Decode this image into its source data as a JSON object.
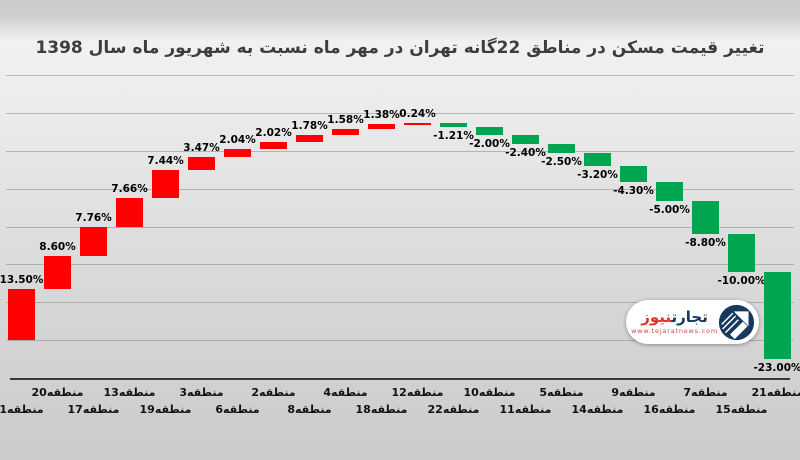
{
  "title": "تغییر قیمت مسکن در مناطق 22گانه تهران در مهر ماه نسبت به شهریور ماه سال 1398",
  "watermark": {
    "brand_word_right": "تجارت",
    "brand_word_left": "نیوز",
    "url": "www.tejaratnews.com",
    "logo": "arrow-circle-icon",
    "navy_color": "#16395d",
    "red_color": "#e23328"
  },
  "chart_data": {
    "type": "bar",
    "subtype": "waterfall",
    "title": "تغییر قیمت مسکن در مناطق 22گانه تهران در مهر ماه نسبت به شهریور ماه سال 1398",
    "categories": [
      "منطقه1",
      "منطقه20",
      "منطقه17",
      "منطقه13",
      "منطقه19",
      "منطقه3",
      "منطقه6",
      "منطقه2",
      "منطقه8",
      "منطقه4",
      "منطقه18",
      "منطقه12",
      "منطقه22",
      "منطقه10",
      "منطقه11",
      "منطقه5",
      "منطقه14",
      "منطقه9",
      "منطقه16",
      "منطقه7",
      "منطقه15",
      "منطقه21"
    ],
    "values": [
      13.5,
      8.6,
      7.76,
      7.66,
      7.44,
      3.47,
      2.04,
      2.02,
      1.78,
      1.58,
      1.38,
      0.24,
      -1.21,
      -2.0,
      -2.4,
      -2.5,
      -3.2,
      -4.3,
      -5.0,
      -8.8,
      -10.0,
      -23.0
    ],
    "labels": [
      "13.50%",
      "8.60%",
      "7.76%",
      "7.66%",
      "7.44%",
      "3.47%",
      "2.04%",
      "2.02%",
      "1.78%",
      "1.58%",
      "1.38%",
      "0.24%",
      "-1.21%",
      "-2.00%",
      "-2.40%",
      "-2.50%",
      "-3.20%",
      "-4.30%",
      "-5.00%",
      "-8.80%",
      "-10.00%",
      "-23.00%"
    ],
    "positive_color": "#fe0000",
    "negative_color": "#00a64f",
    "xlabel": "",
    "ylabel": "",
    "ylim": [
      -10,
      70
    ],
    "gridline_values": [
      0,
      10,
      20,
      30,
      40,
      50,
      60,
      70
    ],
    "grid": true,
    "legend": false,
    "y_tick_labels_visible": false
  }
}
